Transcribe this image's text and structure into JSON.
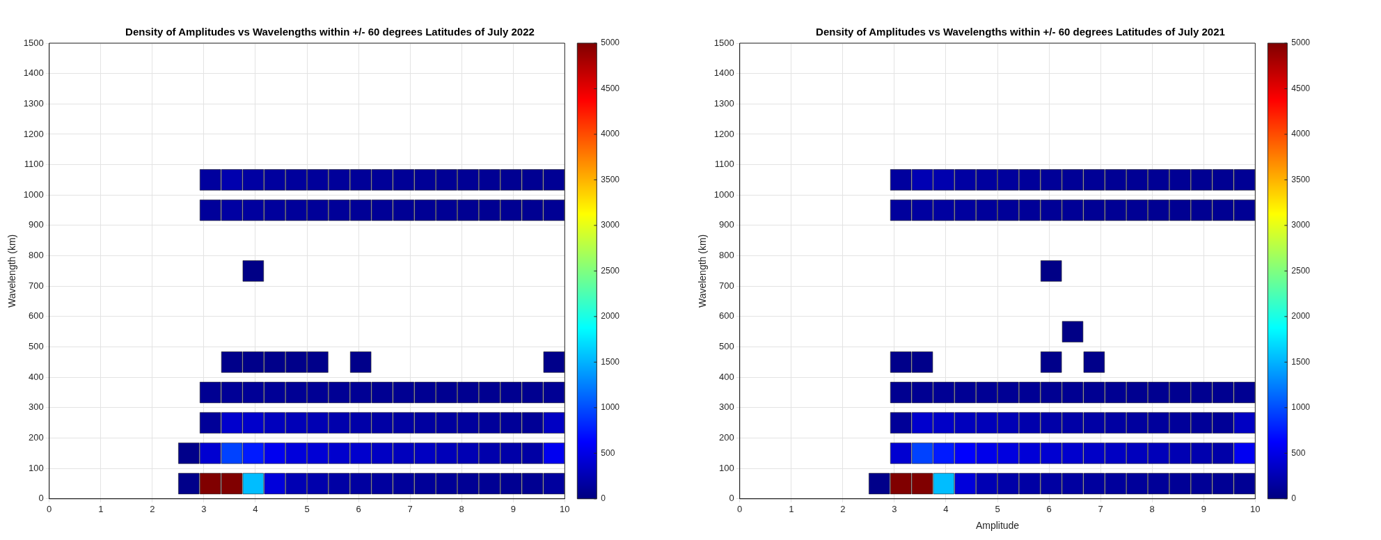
{
  "chart_data": [
    {
      "type": "scatter",
      "title": "Density of Amplitudes vs Wavelengths within +/- 60 degrees Latitudes of July 2022",
      "ylabel": "Wavelength (km)",
      "marker": "square",
      "x": [
        2.708,
        3.125,
        3.542,
        3.958,
        4.375,
        4.792,
        5.208,
        5.625,
        6.042,
        6.458,
        6.875,
        7.292,
        7.708,
        8.125,
        8.542,
        8.958,
        9.375,
        9.792,
        2.708,
        3.125,
        3.542,
        3.958,
        4.375,
        4.792,
        5.208,
        5.625,
        6.042,
        6.458,
        6.875,
        7.292,
        7.708,
        8.125,
        8.542,
        8.958,
        9.375,
        9.792,
        3.125,
        3.542,
        3.958,
        4.375,
        4.792,
        5.208,
        5.625,
        6.042,
        6.458,
        6.875,
        7.292,
        7.708,
        8.125,
        8.542,
        8.958,
        9.375,
        9.792,
        3.125,
        3.542,
        3.958,
        4.375,
        4.792,
        5.208,
        5.625,
        6.042,
        6.458,
        6.875,
        7.292,
        7.708,
        8.125,
        8.542,
        8.958,
        9.375,
        9.792,
        3.542,
        3.958,
        4.375,
        4.792,
        5.208,
        6.042,
        9.792,
        3.958,
        3.125,
        3.542,
        3.958,
        4.375,
        4.792,
        5.208,
        5.625,
        6.042,
        6.458,
        6.875,
        7.292,
        7.708,
        8.125,
        8.542,
        8.958,
        9.375,
        9.792,
        3.125,
        3.542,
        3.958,
        4.375,
        4.792,
        5.208,
        5.625,
        6.042,
        6.458,
        6.875,
        7.292,
        7.708,
        8.125,
        8.542,
        8.958,
        9.375,
        9.792
      ],
      "values": [
        50,
        50,
        50,
        50,
        50,
        50,
        50,
        50,
        50,
        50,
        50,
        50,
        50,
        50,
        50,
        50,
        50,
        50,
        150,
        150,
        150,
        150,
        150,
        150,
        150,
        150,
        150,
        150,
        150,
        150,
        150,
        150,
        150,
        150,
        150,
        150,
        250,
        250,
        250,
        250,
        250,
        250,
        250,
        250,
        250,
        250,
        250,
        250,
        250,
        250,
        250,
        250,
        250,
        350,
        350,
        350,
        350,
        350,
        350,
        350,
        350,
        350,
        350,
        350,
        350,
        350,
        350,
        350,
        350,
        350,
        450,
        450,
        450,
        450,
        450,
        450,
        450,
        750,
        950,
        950,
        950,
        950,
        950,
        950,
        950,
        950,
        950,
        950,
        950,
        950,
        950,
        950,
        950,
        950,
        950,
        1050,
        1050,
        1050,
        1050,
        1050,
        1050,
        1050,
        1050,
        1050,
        1050,
        1050,
        1050,
        1050,
        1050,
        1050,
        1050,
        1050
      ],
      "cvalues": [
        50,
        5000,
        5000,
        1550,
        450,
        250,
        220,
        180,
        160,
        150,
        130,
        120,
        110,
        100,
        100,
        90,
        90,
        150,
        50,
        400,
        950,
        750,
        550,
        450,
        420,
        380,
        380,
        330,
        300,
        320,
        280,
        250,
        220,
        200,
        180,
        550,
        120,
        380,
        370,
        300,
        270,
        250,
        220,
        200,
        180,
        170,
        160,
        150,
        140,
        130,
        120,
        110,
        330,
        90,
        110,
        110,
        110,
        100,
        100,
        100,
        100,
        90,
        90,
        90,
        80,
        80,
        80,
        80,
        80,
        100,
        50,
        50,
        50,
        50,
        50,
        50,
        50,
        30,
        130,
        170,
        150,
        140,
        130,
        120,
        120,
        110,
        110,
        100,
        100,
        100,
        90,
        90,
        90,
        90,
        100,
        150,
        230,
        170,
        150,
        140,
        130,
        130,
        120,
        120,
        110,
        110,
        100,
        100,
        100,
        90,
        90,
        100
      ],
      "clim": [
        0,
        5000
      ],
      "cticks": [
        0,
        500,
        1000,
        1500,
        2000,
        2500,
        3000,
        3500,
        4000,
        4500,
        5000
      ],
      "xlim": [
        0,
        10
      ],
      "xticks": [
        0,
        1,
        2,
        3,
        4,
        5,
        6,
        7,
        8,
        9,
        10
      ],
      "ylim": [
        0,
        1500
      ],
      "yticks": [
        0,
        100,
        200,
        300,
        400,
        500,
        600,
        700,
        800,
        900,
        1000,
        1100,
        1200,
        1300,
        1400,
        1500
      ],
      "grid": true
    },
    {
      "type": "scatter",
      "title": "Density of Amplitudes vs Wavelengths within +/- 60 degrees Latitudes of July 2021",
      "xlabel": "Amplitude",
      "ylabel": "Wavelength (km)",
      "marker": "square",
      "x": [
        2.708,
        3.125,
        3.542,
        3.958,
        4.375,
        4.792,
        5.208,
        5.625,
        6.042,
        6.458,
        6.875,
        7.292,
        7.708,
        8.125,
        8.542,
        8.958,
        9.375,
        9.792,
        3.125,
        3.542,
        3.958,
        4.375,
        4.792,
        5.208,
        5.625,
        6.042,
        6.458,
        6.875,
        7.292,
        7.708,
        8.125,
        8.542,
        8.958,
        9.375,
        9.792,
        3.125,
        3.542,
        3.958,
        4.375,
        4.792,
        5.208,
        5.625,
        6.042,
        6.458,
        6.875,
        7.292,
        7.708,
        8.125,
        8.542,
        8.958,
        9.375,
        9.792,
        3.125,
        3.542,
        3.958,
        4.375,
        4.792,
        5.208,
        5.625,
        6.042,
        6.458,
        6.875,
        7.292,
        7.708,
        8.125,
        8.542,
        8.958,
        9.375,
        9.792,
        3.125,
        3.542,
        6.042,
        6.875,
        6.458,
        6.042,
        3.125,
        3.542,
        3.958,
        4.375,
        4.792,
        5.208,
        5.625,
        6.042,
        6.458,
        6.875,
        7.292,
        7.708,
        8.125,
        8.542,
        8.958,
        9.375,
        9.792,
        3.125,
        3.542,
        3.958,
        4.375,
        4.792,
        5.208,
        5.625,
        6.042,
        6.458,
        6.875,
        7.292,
        7.708,
        8.125,
        8.542,
        8.958,
        9.375,
        9.792
      ],
      "values": [
        50,
        50,
        50,
        50,
        50,
        50,
        50,
        50,
        50,
        50,
        50,
        50,
        50,
        50,
        50,
        50,
        50,
        50,
        150,
        150,
        150,
        150,
        150,
        150,
        150,
        150,
        150,
        150,
        150,
        150,
        150,
        150,
        150,
        150,
        150,
        250,
        250,
        250,
        250,
        250,
        250,
        250,
        250,
        250,
        250,
        250,
        250,
        250,
        250,
        250,
        250,
        250,
        350,
        350,
        350,
        350,
        350,
        350,
        350,
        350,
        350,
        350,
        350,
        350,
        350,
        350,
        350,
        350,
        350,
        450,
        450,
        450,
        450,
        550,
        750,
        950,
        950,
        950,
        950,
        950,
        950,
        950,
        950,
        950,
        950,
        950,
        950,
        950,
        950,
        950,
        950,
        950,
        1050,
        1050,
        1050,
        1050,
        1050,
        1050,
        1050,
        1050,
        1050,
        1050,
        1050,
        1050,
        1050,
        1050,
        1050,
        1050,
        1050
      ],
      "cvalues": [
        50,
        5000,
        5000,
        1550,
        450,
        250,
        200,
        180,
        170,
        160,
        150,
        140,
        130,
        120,
        110,
        110,
        100,
        100,
        400,
        950,
        750,
        620,
        520,
        470,
        430,
        400,
        380,
        350,
        330,
        300,
        280,
        250,
        230,
        200,
        560,
        120,
        380,
        350,
        300,
        280,
        260,
        220,
        200,
        190,
        180,
        170,
        150,
        140,
        130,
        120,
        110,
        330,
        80,
        90,
        100,
        100,
        100,
        100,
        100,
        90,
        90,
        90,
        90,
        80,
        80,
        80,
        80,
        80,
        90,
        50,
        50,
        50,
        50,
        30,
        30,
        140,
        160,
        160,
        150,
        130,
        120,
        120,
        110,
        110,
        100,
        100,
        100,
        90,
        90,
        90,
        90,
        100,
        150,
        250,
        230,
        170,
        150,
        140,
        130,
        120,
        110,
        110,
        100,
        100,
        100,
        100,
        90,
        90,
        100
      ],
      "clim": [
        0,
        5000
      ],
      "cticks": [
        0,
        500,
        1000,
        1500,
        2000,
        2500,
        3000,
        3500,
        4000,
        4500,
        5000
      ],
      "xlim": [
        0,
        10
      ],
      "xticks": [
        0,
        1,
        2,
        3,
        4,
        5,
        6,
        7,
        8,
        9,
        10
      ],
      "ylim": [
        0,
        1500
      ],
      "yticks": [
        0,
        100,
        200,
        300,
        400,
        500,
        600,
        700,
        800,
        900,
        1000,
        1100,
        1200,
        1300,
        1400,
        1500
      ],
      "grid": true
    }
  ]
}
